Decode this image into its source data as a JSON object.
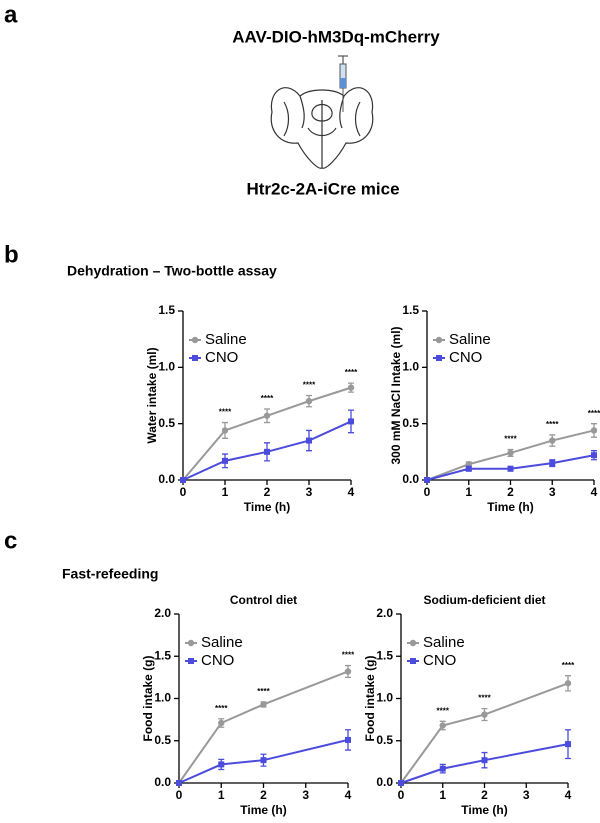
{
  "panels": {
    "a": {
      "label": "a",
      "construct": "AAV-DIO-hM3Dq-mCherry",
      "mouse": "Htr2c-2A-iCre mice"
    },
    "b": {
      "label": "b",
      "heading": "Dehydration – Two-bottle assay"
    },
    "c": {
      "label": "c",
      "heading": "Fast-refeeding"
    }
  },
  "chart_data": [
    {
      "type": "line",
      "xlabel": "Time (h)",
      "ylabel": "Water intake (ml)",
      "x": [
        0,
        1,
        2,
        3,
        4
      ],
      "xlim": [
        0,
        4
      ],
      "xticks": [
        0,
        1,
        2,
        3,
        4
      ],
      "ylim": [
        0,
        1.5
      ],
      "yticks": [
        {
          "value": 0,
          "label": "0.0"
        },
        0.5,
        {
          "value": 1,
          "label": "1.0"
        },
        1.5
      ],
      "legend": "upper left",
      "series": [
        {
          "name": "Saline",
          "color": "#999999",
          "marker": "circle",
          "values": [
            0,
            0.44,
            0.57,
            0.7,
            0.82
          ],
          "errors": [
            0,
            0.07,
            0.06,
            0.05,
            0.04
          ]
        },
        {
          "name": "CNO",
          "color": "#4b4bdc",
          "marker": "square",
          "values": [
            0,
            0.17,
            0.25,
            0.35,
            0.52
          ],
          "errors": [
            0,
            0.06,
            0.08,
            0.09,
            0.1
          ]
        }
      ],
      "annotations": [
        {
          "x": 1,
          "text": "****"
        },
        {
          "x": 2,
          "text": "****"
        },
        {
          "x": 3,
          "text": "****"
        },
        {
          "x": 4,
          "text": "****"
        }
      ]
    },
    {
      "type": "line",
      "xlabel": "Time (h)",
      "ylabel": "300 mM NaCl Intake (ml)",
      "x": [
        0,
        1,
        2,
        3,
        4
      ],
      "xlim": [
        0,
        4
      ],
      "xticks": [
        0,
        1,
        2,
        3,
        4
      ],
      "ylim": [
        0,
        1.5
      ],
      "yticks": [
        {
          "value": 0,
          "label": "0.0"
        },
        0.5,
        {
          "value": 1,
          "label": "1.0"
        },
        1.5
      ],
      "legend": "upper left",
      "series": [
        {
          "name": "Saline",
          "color": "#999999",
          "marker": "circle",
          "values": [
            0,
            0.14,
            0.24,
            0.35,
            0.44
          ],
          "errors": [
            0,
            0.02,
            0.03,
            0.05,
            0.06
          ]
        },
        {
          "name": "CNO",
          "color": "#4b4bdc",
          "marker": "square",
          "values": [
            0,
            0.1,
            0.1,
            0.15,
            0.22
          ],
          "errors": [
            0,
            0.02,
            0.02,
            0.03,
            0.04
          ]
        }
      ],
      "annotations": [
        {
          "x": 2,
          "text": "****"
        },
        {
          "x": 3,
          "text": "****"
        },
        {
          "x": 4,
          "text": "****"
        }
      ]
    },
    {
      "type": "line",
      "title": "Control diet",
      "xlabel": "Time (h)",
      "ylabel": "Food intake (g)",
      "x": [
        0,
        1,
        2,
        4
      ],
      "xlim": [
        0,
        4
      ],
      "xticks": [
        0,
        1,
        2,
        3,
        4
      ],
      "ylim": [
        0,
        2
      ],
      "yticks": [
        {
          "value": 0,
          "label": "0.0"
        },
        0.5,
        {
          "value": 1,
          "label": "1.0"
        },
        1.5,
        {
          "value": 2,
          "label": "2.0"
        }
      ],
      "legend": "upper left",
      "series": [
        {
          "name": "Saline",
          "color": "#999999",
          "marker": "circle",
          "values": [
            0,
            0.71,
            0.93,
            1.32
          ],
          "errors": [
            0,
            0.05,
            0.03,
            0.07
          ]
        },
        {
          "name": "CNO",
          "color": "#4b4bdc",
          "marker": "square",
          "values": [
            0,
            0.22,
            0.27,
            0.51
          ],
          "errors": [
            0,
            0.06,
            0.07,
            0.12
          ]
        }
      ],
      "annotations": [
        {
          "x": 1,
          "text": "****"
        },
        {
          "x": 2,
          "text": "****"
        },
        {
          "x": 4,
          "text": "****"
        }
      ]
    },
    {
      "type": "line",
      "title": "Sodium-deficient diet",
      "xlabel": "Time (h)",
      "ylabel": "Food intake (g)",
      "x": [
        0,
        1,
        2,
        4
      ],
      "xlim": [
        0,
        4
      ],
      "xticks": [
        0,
        1,
        2,
        3,
        4
      ],
      "ylim": [
        0,
        2
      ],
      "yticks": [
        {
          "value": 0,
          "label": "0.0"
        },
        0.5,
        {
          "value": 1,
          "label": "1.0"
        },
        1.5,
        {
          "value": 2,
          "label": "2.0"
        }
      ],
      "legend": "upper left",
      "series": [
        {
          "name": "Saline",
          "color": "#999999",
          "marker": "circle",
          "values": [
            0,
            0.68,
            0.81,
            1.18
          ],
          "errors": [
            0,
            0.05,
            0.07,
            0.09
          ]
        },
        {
          "name": "CNO",
          "color": "#4b4bdc",
          "marker": "square",
          "values": [
            0,
            0.17,
            0.27,
            0.46
          ],
          "errors": [
            0,
            0.05,
            0.09,
            0.17
          ]
        }
      ],
      "annotations": [
        {
          "x": 1,
          "text": "****"
        },
        {
          "x": 2,
          "text": "****"
        },
        {
          "x": 4,
          "text": "****"
        }
      ]
    }
  ]
}
